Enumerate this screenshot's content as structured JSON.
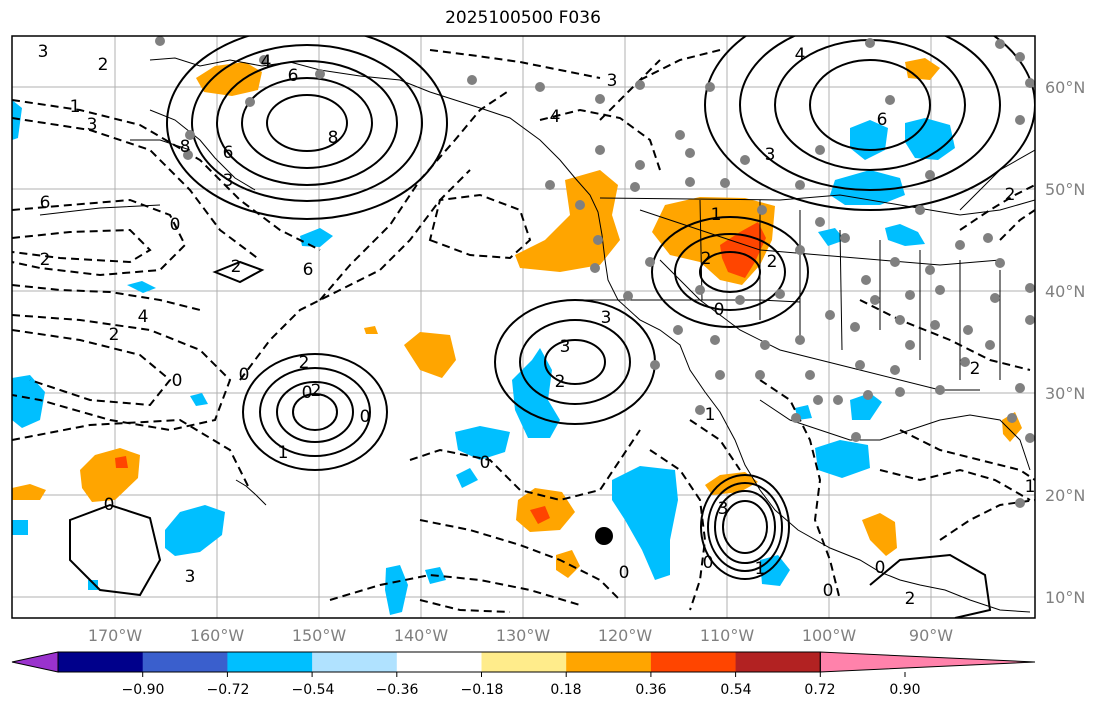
{
  "title": "2025100500 F036",
  "lat_labels": [
    "60°N",
    "50°N",
    "40°N",
    "30°N",
    "20°N",
    "10°N"
  ],
  "lon_labels": [
    "170°W",
    "160°W",
    "150°W",
    "140°W",
    "130°W",
    "120°W",
    "110°W",
    "100°W",
    "90°W"
  ],
  "colorbar": {
    "ticks": [
      "−0.90",
      "−0.72",
      "−0.54",
      "−0.36",
      "−0.18",
      "0.18",
      "0.36",
      "0.54",
      "0.72",
      "0.90"
    ],
    "colors": [
      "#9a32cd",
      "#00008b",
      "#3a5fcd",
      "#00bfff",
      "#b0e2ff",
      "#ffffff",
      "#ffec8b",
      "#ffa500",
      "#ff4500",
      "#b22222",
      "#ff82ab"
    ]
  },
  "contour_labels": [
    "3",
    "2",
    "4",
    "6",
    "8",
    "1",
    "3",
    "6",
    "8",
    "3",
    "4",
    "3",
    "6",
    "4",
    "3",
    "6",
    "2",
    "0",
    "2",
    "6",
    "4",
    "2",
    "0",
    "0",
    "1",
    "2",
    "2",
    "0",
    "0",
    "3",
    "2",
    "3",
    "0",
    "0",
    "3",
    "2",
    "1",
    "2",
    "2",
    "0",
    "1",
    "3",
    "0",
    "1",
    "0",
    "0",
    "2",
    "1",
    "0",
    "2"
  ],
  "colors": {
    "shade_pos": "#ffa500",
    "shade_pos_strong": "#ff4500",
    "shade_neg": "#00bfff",
    "stations": "#808080"
  }
}
